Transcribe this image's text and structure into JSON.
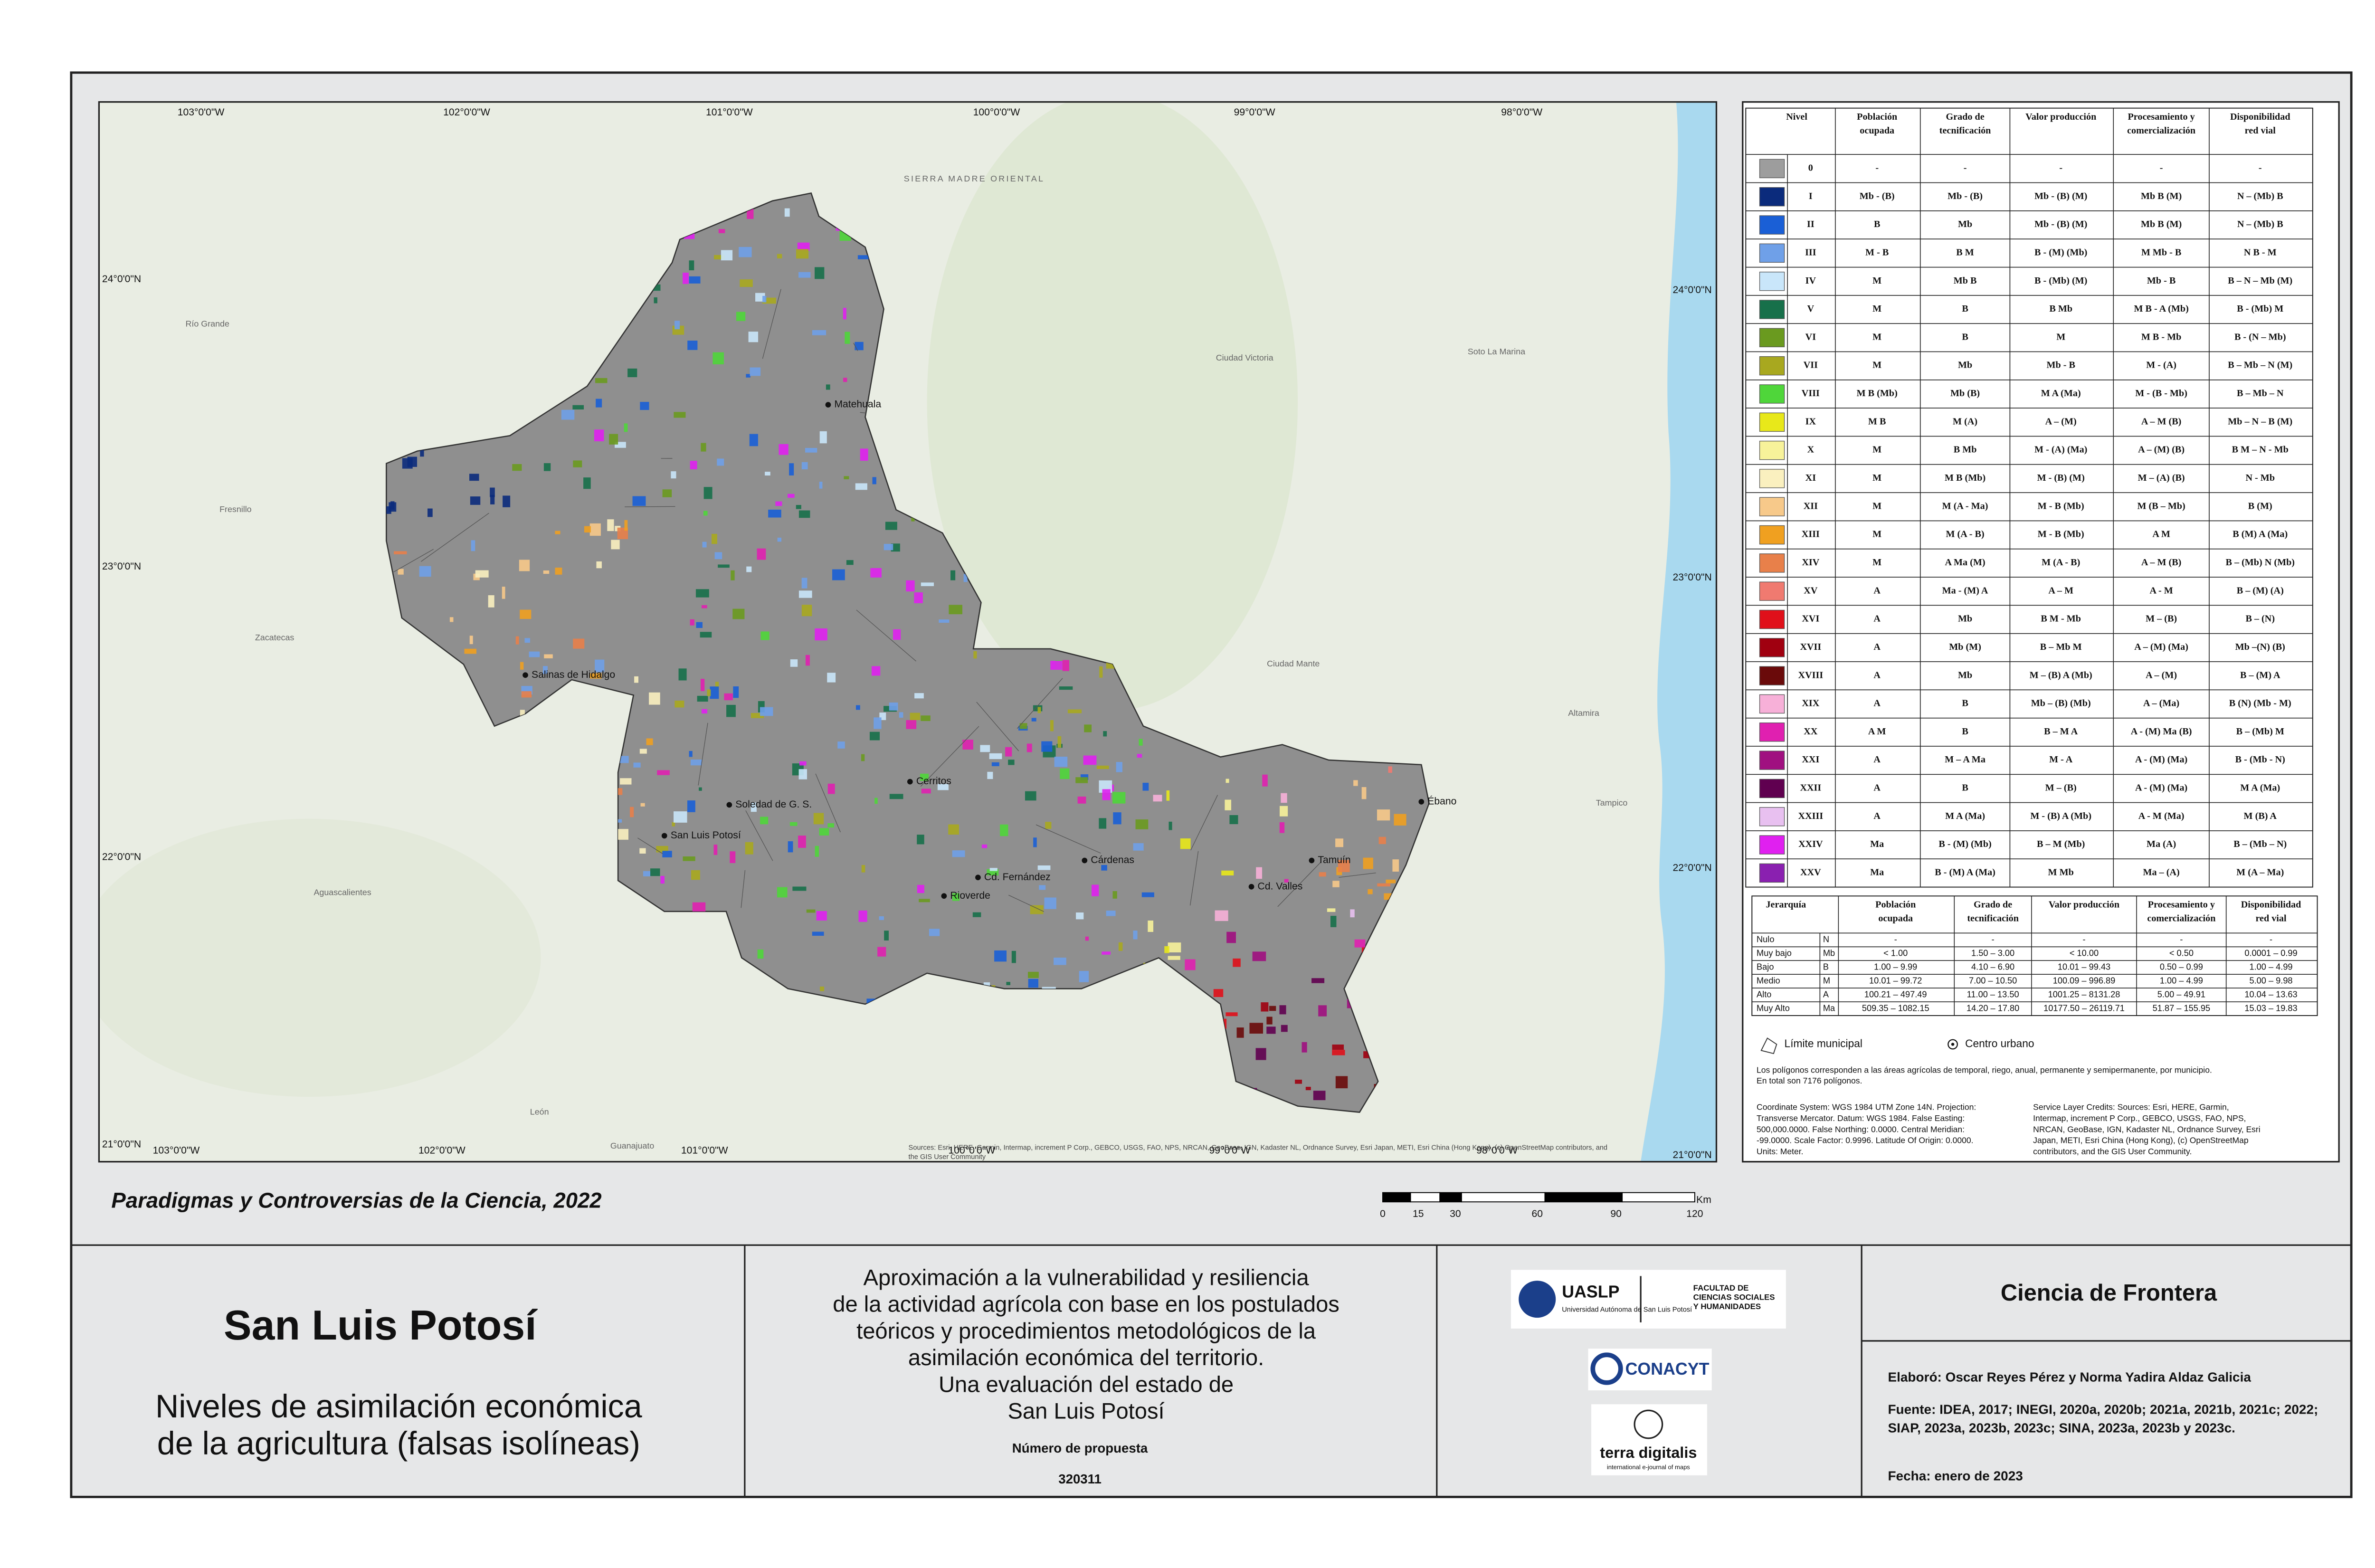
{
  "map": {
    "lon_labels": [
      "103°0'0\"W",
      "102°0'0\"W",
      "101°0'0\"W",
      "100°0'0\"W",
      "99°0'0\"W",
      "98°0'0\"W"
    ],
    "lat_labels": [
      "24°0'0\"N",
      "23°0'0\"N",
      "22°0'0\"N",
      "21°0'0\"N"
    ],
    "places": [
      "Matehuala",
      "Salinas de Hidalgo",
      "Cerritos",
      "Soledad de G. S.",
      "San Luis Potosí",
      "Rioverde",
      "Cd. Fernández",
      "Cárdenas",
      "Cd. Valles",
      "Tamuín",
      "Ébano",
      "Zacatecas",
      "Fresnillo",
      "Río Grande",
      "Ciudad Victoria",
      "Aguascalientes",
      "León",
      "Tampico",
      "Guanajuato",
      "SIERRA MADRE ORIENTAL",
      "Ciudad Mante",
      "Soto La Marina",
      "Altamira"
    ],
    "source_lines": [
      "Sources: Esri, HERE, Garmin, Intermap, increment P Corp., GEBCO, USGS, FAO, NPS, NRCAN, GeoBase, IGN, Kadaster NL, Ordnance Survey, Esri Japan, METI, Esri China (Hong Kong), (c) OpenStreetMap contributors, and",
      "the GIS User Community"
    ]
  },
  "legend": {
    "header": [
      [
        "Nivel"
      ],
      [
        "Población",
        "ocupada"
      ],
      [
        "Grado de",
        "tecnificación"
      ],
      [
        "Valor producción"
      ],
      [
        "Procesamiento y",
        "comercialización"
      ],
      [
        "Disponibilidad",
        "red vial"
      ]
    ],
    "rows": [
      {
        "nivel": "0",
        "color": "#9d9d9d",
        "cells": [
          "-",
          "-",
          "-",
          "-",
          "-"
        ]
      },
      {
        "nivel": "I",
        "color": "#0b2b7c",
        "cells": [
          "Mb - (B)",
          "Mb - (B)",
          "Mb - (B) (M)",
          "Mb B (M)",
          "N – (Mb) B"
        ]
      },
      {
        "nivel": "II",
        "color": "#1a5fd6",
        "cells": [
          "B",
          "Mb",
          "Mb - (B) (M)",
          "Mb B (M)",
          "N – (Mb) B"
        ]
      },
      {
        "nivel": "III",
        "color": "#6fa0e8",
        "cells": [
          "M - B",
          "B M",
          "B - (M) (Mb)",
          "M Mb - B",
          "N B - M"
        ]
      },
      {
        "nivel": "IV",
        "color": "#c9e6fa",
        "cells": [
          "M",
          "Mb B",
          "B - (Mb) (M)",
          "Mb - B",
          "B – N – Mb (M)"
        ]
      },
      {
        "nivel": "V",
        "color": "#17704a",
        "cells": [
          "M",
          "B",
          "B Mb",
          "M B - A (Mb)",
          "B - (Mb) M"
        ]
      },
      {
        "nivel": "VI",
        "color": "#6a9a1f",
        "cells": [
          "M",
          "B",
          "M",
          "M B - Mb",
          "B - (N – Mb)"
        ]
      },
      {
        "nivel": "VII",
        "color": "#a8a81f",
        "cells": [
          "M",
          "Mb",
          "Mb - B",
          "M - (A)",
          "B – Mb – N (M)"
        ]
      },
      {
        "nivel": "VIII",
        "color": "#4fd63a",
        "cells": [
          "M B (Mb)",
          "Mb (B)",
          "M A (Ma)",
          "M - (B - Mb)",
          "B – Mb – N"
        ]
      },
      {
        "nivel": "IX",
        "color": "#e8e81a",
        "cells": [
          "M B",
          "M (A)",
          "A – (M)",
          "A – M (B)",
          "Mb – N – B (M)"
        ]
      },
      {
        "nivel": "X",
        "color": "#f7f29a",
        "cells": [
          "M",
          "B Mb",
          "M - (A) (Ma)",
          "A – (M) (B)",
          "B M – N - Mb"
        ]
      },
      {
        "nivel": "XI",
        "color": "#faf0bf",
        "cells": [
          "M",
          "M B (Mb)",
          "M - (B) (M)",
          "M – (A) (B)",
          "N - Mb"
        ]
      },
      {
        "nivel": "XII",
        "color": "#f7c98a",
        "cells": [
          "M",
          "M (A - Ma)",
          "M - B (Mb)",
          "M (B – Mb)",
          "B (M)"
        ]
      },
      {
        "nivel": "XIII",
        "color": "#f0a020",
        "cells": [
          "M",
          "M (A - B)",
          "M - B (Mb)",
          "A M",
          "B (M) A (Ma)"
        ]
      },
      {
        "nivel": "XIV",
        "color": "#e8804a",
        "cells": [
          "M",
          "A Ma (M)",
          "M (A - B)",
          "A – M (B)",
          "B – (Mb) N (Mb)"
        ]
      },
      {
        "nivel": "XV",
        "color": "#f07a70",
        "cells": [
          "A",
          "Ma - (M) A",
          "A – M",
          "A - M",
          "B – (M) (A)"
        ]
      },
      {
        "nivel": "XVI",
        "color": "#e0101a",
        "cells": [
          "A",
          "Mb",
          "B M - Mb",
          "M – (B)",
          "B – (N)"
        ]
      },
      {
        "nivel": "XVII",
        "color": "#a00010",
        "cells": [
          "A",
          "Mb (M)",
          "B – Mb M",
          "A – (M) (Ma)",
          "Mb –(N) (B)"
        ]
      },
      {
        "nivel": "XVIII",
        "color": "#6a0a0a",
        "cells": [
          "A",
          "Mb",
          "M – (B) A (Mb)",
          "A – (M)",
          "B – (M) A"
        ]
      },
      {
        "nivel": "XIX",
        "color": "#f7b0d8",
        "cells": [
          "A",
          "B",
          "Mb – (B) (Mb)",
          "A – (Ma)",
          "B (N) (Mb - M)"
        ]
      },
      {
        "nivel": "XX",
        "color": "#e020b0",
        "cells": [
          "A M",
          "B",
          "B – M A",
          "A - (M) Ma (B)",
          "B – (Mb) M"
        ]
      },
      {
        "nivel": "XXI",
        "color": "#a01080",
        "cells": [
          "A",
          "M – A Ma",
          "M - A",
          "A - (M) (Ma)",
          "B - (Mb - N)"
        ]
      },
      {
        "nivel": "XXII",
        "color": "#600050",
        "cells": [
          "A",
          "B",
          "M – (B)",
          "A - (M) (Ma)",
          "M A (Ma)"
        ]
      },
      {
        "nivel": "XXIII",
        "color": "#e8c0f0",
        "cells": [
          "A",
          "M A (Ma)",
          "M - (B) A (Mb)",
          "A - M (Ma)",
          "M (B) A"
        ]
      },
      {
        "nivel": "XXIV",
        "color": "#e020f0",
        "cells": [
          "Ma",
          "B - (M) (Mb)",
          "B – M (Mb)",
          "Ma (A)",
          "B – (Mb – N)"
        ]
      },
      {
        "nivel": "XXV",
        "color": "#8a20b0",
        "cells": [
          "Ma",
          "B - (M) A (Ma)",
          "M Mb",
          "Ma – (A)",
          "M (A – Ma)"
        ]
      }
    ]
  },
  "hierarchy": {
    "header": [
      [
        "Jerarquía"
      ],
      [
        "Población",
        "ocupada"
      ],
      [
        "Grado de",
        "tecnificación"
      ],
      [
        "Valor producción"
      ],
      [
        "Procesamiento y",
        "comercialización"
      ],
      [
        "Disponibilidad",
        "red vial"
      ]
    ],
    "rows": [
      [
        "Nulo",
        "N",
        "-",
        "-",
        "-",
        "-",
        "-"
      ],
      [
        "Muy bajo",
        "Mb",
        "< 1.00",
        "1.50 – 3.00",
        "< 10.00",
        "< 0.50",
        "0.0001 – 0.99"
      ],
      [
        "Bajo",
        "B",
        "1.00 – 9.99",
        "4.10 – 6.90",
        "10.01 – 99.43",
        "0.50 – 0.99",
        "1.00 – 4.99"
      ],
      [
        "Medio",
        "M",
        "10.01 – 99.72",
        "7.00 – 10.50",
        "100.09 – 996.89",
        "1.00 – 4.99",
        "5.00 – 9.98"
      ],
      [
        "Alto",
        "A",
        "100.21 – 497.49",
        "11.00 – 13.50",
        "1001.25 – 8131.28",
        "5.00 – 49.91",
        "10.04 – 13.63"
      ],
      [
        "Muy Alto",
        "Ma",
        "509.35 – 1082.15",
        "14.20 – 17.80",
        "10177.50 – 26119.71",
        "51.87 – 155.95",
        "15.03 – 19.83"
      ]
    ]
  },
  "symbols": [
    "Límite municipal",
    "Centro urbano"
  ],
  "notes": [
    "Los polígonos corresponden a las áreas agrícolas de temporal, riego, anual, permanente y semipermanente, por municipio.",
    "En total son 7176 polígonos."
  ],
  "coordinate_system": [
    "Coordinate System: WGS 1984 UTM Zone 14N. Projection:",
    "Transverse Mercator. Datum: WGS 1984. False Easting:",
    "500,000.0000. False Northing: 0.0000. Central Meridian:",
    "-99.0000. Scale Factor: 0.9996. Latitude Of Origin: 0.0000.",
    "Units: Meter."
  ],
  "service_credits": [
    "Service Layer Credits: Sources: Esri, HERE, Garmin,",
    "Intermap, increment P Corp., GEBCO, USGS, FAO, NPS,",
    "NRCAN, GeoBase, IGN, Kadaster NL, Ordnance Survey, Esri",
    "Japan, METI, Esri China (Hong Kong), (c) OpenStreetMap",
    "contributors, and the GIS User Community."
  ],
  "series_title": "Paradigmas y Controversias de la Ciencia, 2022",
  "scale": {
    "labels": [
      "0",
      "15",
      "30",
      "60",
      "90",
      "120"
    ],
    "unit": "Km"
  },
  "title": "San Luis Potosí",
  "subtitle": [
    "Niveles de asimilación económica",
    "de la agricultura (falsas isolíneas)"
  ],
  "description": [
    "Aproximación a la vulnerabilidad y resiliencia",
    "de la actividad agrícola con base en los  postulados",
    "teóricos y procedimientos metodológicos de la",
    "asimilación económica del territorio.",
    "Una evaluación del estado de",
    "San Luis Potosí"
  ],
  "proposal_label": "Número de propuesta",
  "proposal_number": "320311",
  "logos": {
    "uaslp": "UASLP",
    "uaslp_name": "Universidad Autónoma de San Luis Potosí",
    "faculty": [
      "FACULTAD DE",
      "CIENCIAS SOCIALES",
      "Y HUMANIDADES"
    ],
    "conacyt": "CONACYT",
    "terra": "terra digitalis",
    "terra_sub": "international e-journal of maps"
  },
  "program": "Ciencia de Frontera",
  "credits": [
    "Elaboró: Oscar Reyes Pérez y Norma Yadira Aldaz Galicia",
    "Fuente: IDEA, 2017; INEGI, 2020a, 2020b; 2021a, 2021b, 2021c; 2022;",
    "SIAP, 2023a, 2023b, 2023c; SINA, 2023a, 2023b y 2023c.",
    "Fecha: enero de 2023"
  ]
}
